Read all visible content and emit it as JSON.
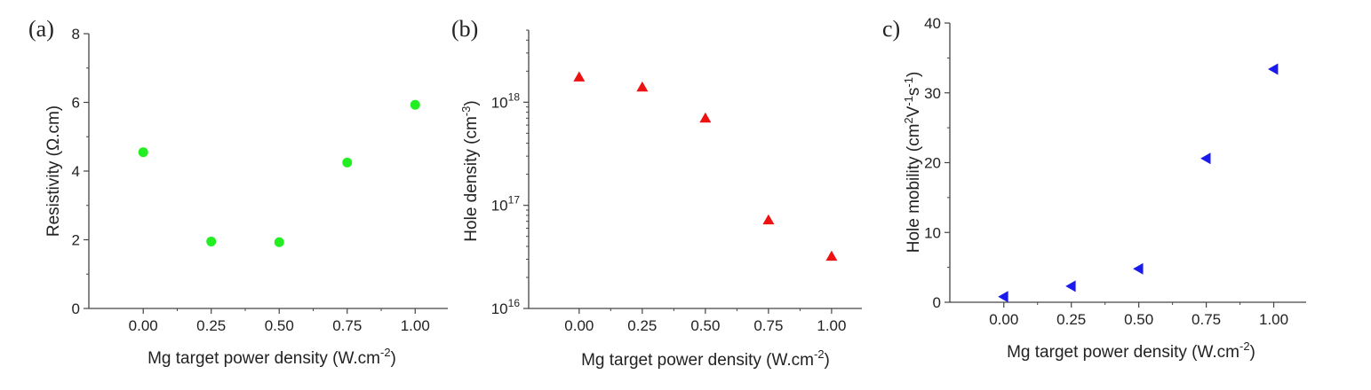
{
  "chart_data": [
    {
      "panel": "(a)",
      "type": "scatter",
      "x": [
        0.0,
        0.25,
        0.5,
        0.75,
        1.0
      ],
      "y": [
        4.55,
        1.95,
        1.93,
        4.25,
        5.93
      ],
      "xlabel": "Mg target power density (W.cm-2)",
      "ylabel": "Resistivity (Ω.cm)",
      "xlim": [
        -0.2,
        1.12
      ],
      "ylim": [
        0,
        8
      ],
      "xticks": [
        "0.00",
        "0.25",
        "0.50",
        "0.75",
        "1.00"
      ],
      "yticks": [
        "0",
        "2",
        "4",
        "6",
        "8"
      ],
      "yscale": "linear",
      "marker": "circle",
      "color": "#22ee22",
      "grid": false
    },
    {
      "panel": "(b)",
      "type": "scatter",
      "x": [
        0.0,
        0.25,
        0.5,
        0.75,
        1.0
      ],
      "y": [
        1.75e+18,
        1.4e+18,
        7e+17,
        7.2e+16,
        3.2e+16
      ],
      "xlabel": "Mg target power density (W.cm-2)",
      "ylabel": "Hole density (cm-3)",
      "xlim": [
        -0.2,
        1.12
      ],
      "ylim": [
        1e+16,
        5e+18
      ],
      "xticks": [
        "0.00",
        "0.25",
        "0.50",
        "0.75",
        "1.00"
      ],
      "yticks": [
        "10^16",
        "10^17",
        "10^18"
      ],
      "yscale": "log",
      "marker": "triangle-up",
      "color": "#ee1111",
      "grid": false
    },
    {
      "panel": "c)",
      "type": "scatter",
      "x": [
        0.0,
        0.25,
        0.5,
        0.75,
        1.0
      ],
      "y": [
        0.8,
        2.3,
        4.8,
        20.6,
        33.4
      ],
      "xlabel": "Mg target power density (W.cm-2)",
      "ylabel": "Hole mobility (cm2V-1s-1)",
      "xlim": [
        -0.2,
        1.12
      ],
      "ylim": [
        0,
        40
      ],
      "xticks": [
        "0.00",
        "0.25",
        "0.50",
        "0.75",
        "1.00"
      ],
      "yticks": [
        "0",
        "10",
        "20",
        "30",
        "40"
      ],
      "yscale": "linear",
      "marker": "triangle-left",
      "color": "#1a1aee",
      "grid": false
    }
  ]
}
